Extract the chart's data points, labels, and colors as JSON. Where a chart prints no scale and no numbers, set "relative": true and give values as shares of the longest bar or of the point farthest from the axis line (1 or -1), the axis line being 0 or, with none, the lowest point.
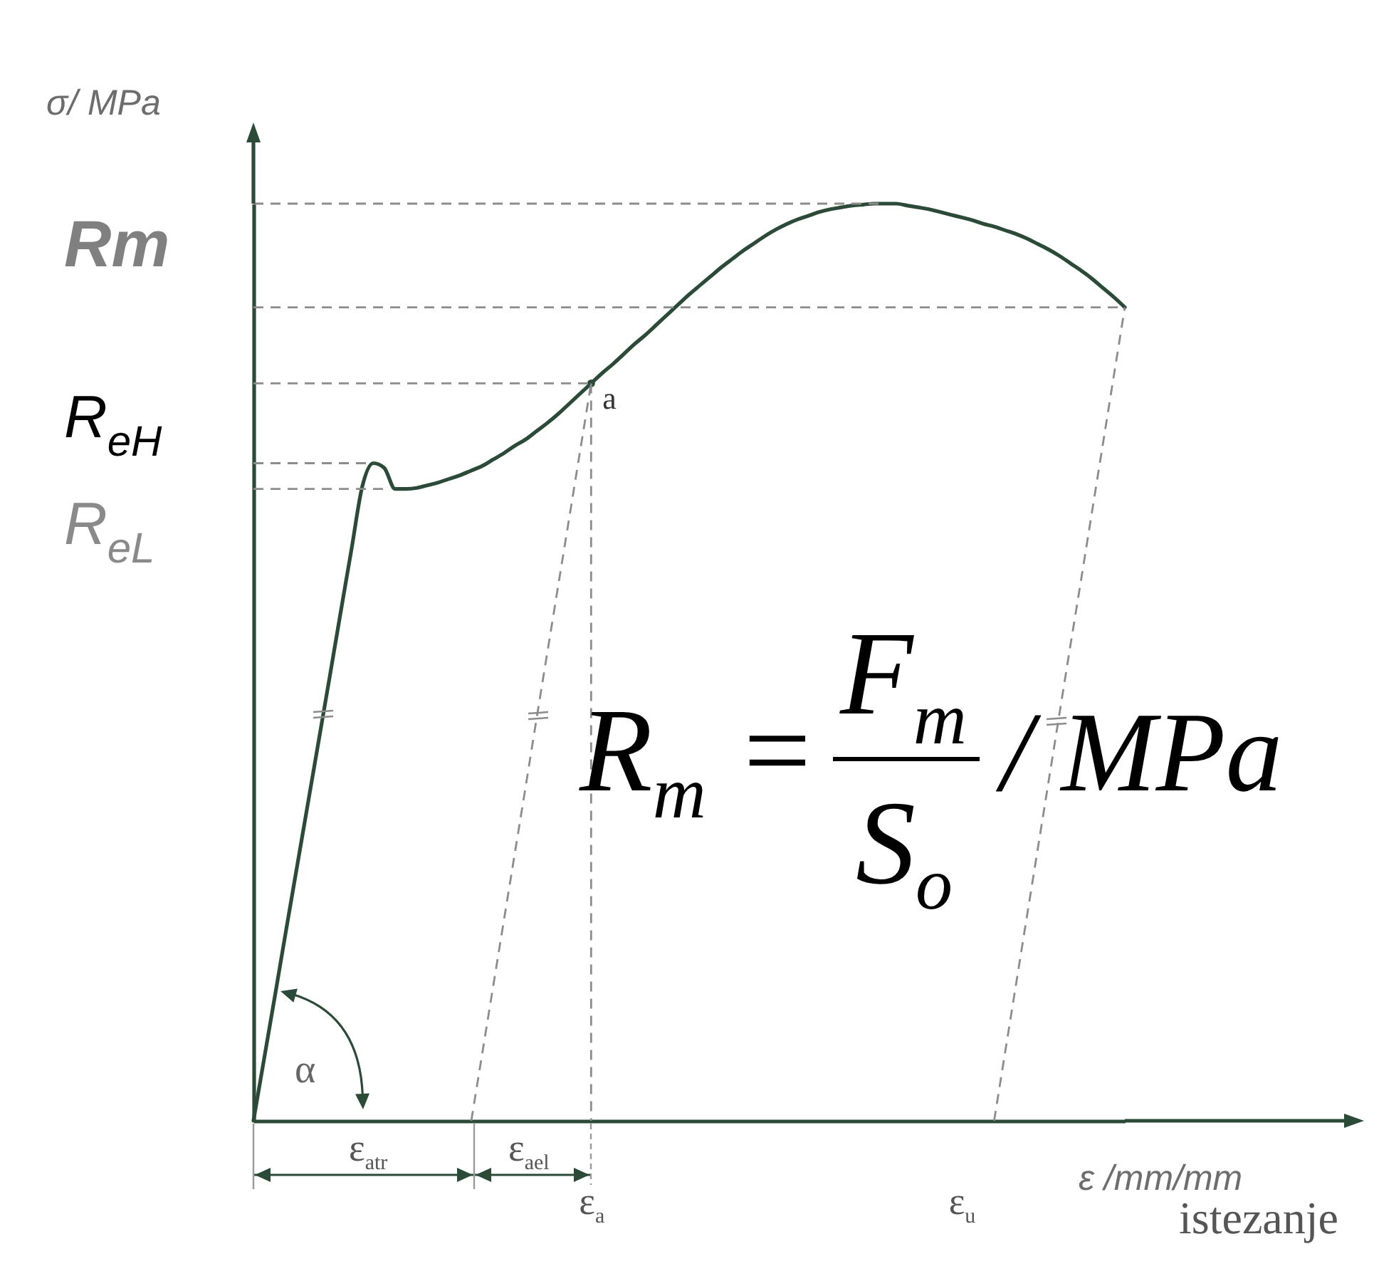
{
  "chart_data": {
    "type": "line",
    "relative": true,
    "ylabel": "σ/ MPa",
    "xlabel": "ε /mm/mm",
    "grid": false,
    "tick_labels": "x",
    "marker": "none",
    "line_style": "solid",
    "categories": [
      null,
      null,
      null,
      null,
      null,
      null,
      null,
      null,
      null,
      null,
      null,
      null,
      null,
      null,
      null,
      null,
      null,
      null,
      null,
      null,
      null,
      null,
      null,
      null,
      null,
      null,
      null,
      null,
      null,
      null,
      null,
      "ε$_{a}$",
      null,
      null,
      null,
      null,
      null,
      null,
      null,
      null,
      null,
      null,
      null,
      null,
      null,
      null,
      null,
      null,
      null,
      null,
      null,
      null,
      null,
      null,
      null,
      null,
      null,
      null,
      null,
      null,
      null,
      null,
      null,
      null,
      null,
      "ε$_{u}$",
      null,
      null,
      null,
      null,
      null,
      null,
      null,
      null,
      null,
      null,
      null,
      null,
      null,
      null,
      null
    ],
    "series": [
      {
        "color": "#2b4a38",
        "values": [
          0,
          0.069,
          0.138,
          0.208,
          0.277,
          0.346,
          0.415,
          0.484,
          0.554,
          0.623,
          0.692,
          0.717,
          0.712,
          0.689,
          0.689,
          0.69,
          0.693,
          0.696,
          0.7,
          0.704,
          0.709,
          0.714,
          0.721,
          0.728,
          0.736,
          0.743,
          0.752,
          0.761,
          0.771,
          0.782,
          0.793,
          0.804,
          0.815,
          0.825,
          0.836,
          0.847,
          0.857,
          0.868,
          0.879,
          0.89,
          0.901,
          0.911,
          0.921,
          0.931,
          0.94,
          0.949,
          0.957,
          0.965,
          0.972,
          0.978,
          0.983,
          0.987,
          0.991,
          0.994,
          0.996,
          0.998,
          0.999,
          1,
          1,
          1,
          0.998,
          0.996,
          0.994,
          0.991,
          0.988,
          0.985,
          0.982,
          0.978,
          0.975,
          0.971,
          0.967,
          0.962,
          0.956,
          0.95,
          0.943,
          0.935,
          0.927,
          0.918,
          0.908,
          0.898,
          0.887
        ]
      },
      {
        "type": "scatter",
        "marker": "circle",
        "color": "#2b4a38",
        "x": [
          "ε$_{a}$"
        ],
        "values": [
          0.804
        ]
      },
      {
        "color": "#8c8c8c",
        "line_style": "dashed",
        "values": [
          1,
          1,
          1,
          1,
          1,
          1,
          1,
          1,
          1,
          1,
          1,
          1,
          1,
          1,
          1,
          1,
          1,
          1,
          1,
          1,
          1,
          1,
          1,
          1,
          1,
          1,
          1,
          1,
          1,
          1,
          1,
          1,
          1,
          1,
          1,
          1,
          1,
          1,
          1,
          1,
          1,
          1,
          1,
          1,
          1,
          1,
          1,
          1,
          1,
          1,
          1,
          1,
          1,
          1,
          1,
          1,
          1,
          1,
          1,
          null,
          null,
          null,
          null,
          null,
          null,
          null,
          null,
          null,
          null,
          null,
          null,
          null,
          null,
          null,
          null,
          null,
          null,
          null,
          null,
          null,
          null
        ]
      },
      {
        "color": "#8c8c8c",
        "line_style": "dashed",
        "values": [
          0.887,
          0.887,
          0.887,
          0.887,
          0.887,
          0.887,
          0.887,
          0.887,
          0.887,
          0.887,
          0.887,
          0.887,
          0.887,
          0.887,
          0.887,
          0.887,
          0.887,
          0.887,
          0.887,
          0.887,
          0.887,
          0.887,
          0.887,
          0.887,
          0.887,
          0.887,
          0.887,
          0.887,
          0.887,
          0.887,
          0.887,
          0.887,
          0.887,
          0.887,
          0.887,
          0.887,
          0.887,
          0.887,
          0.887,
          0.887,
          0.887,
          0.887,
          0.887,
          0.887,
          0.887,
          0.887,
          0.887,
          0.887,
          0.887,
          0.887,
          0.887,
          0.887,
          0.887,
          0.887,
          0.887,
          0.887,
          0.887,
          0.887,
          0.887,
          0.887,
          0.887,
          0.887,
          0.887,
          0.887,
          0.887,
          0.887,
          0.887,
          0.887,
          0.887,
          0.887,
          0.887,
          0.887,
          0.887,
          0.887,
          0.887,
          0.887,
          0.887,
          0.887,
          0.887,
          0.887,
          0.887
        ]
      },
      {
        "color": "#8c8c8c",
        "line_style": "dashed",
        "values": [
          0.804,
          0.804,
          0.804,
          0.804,
          0.804,
          0.804,
          0.804,
          0.804,
          0.804,
          0.804,
          0.804,
          0.804,
          0.804,
          0.804,
          0.804,
          0.804,
          0.804,
          0.804,
          0.804,
          0.804,
          0.804,
          0.804,
          0.804,
          0.804,
          0.804,
          0.804,
          0.804,
          0.804,
          0.804,
          0.804,
          0.804,
          0.804,
          null,
          null,
          null,
          null,
          null,
          null,
          null,
          null,
          null,
          null,
          null,
          null,
          null,
          null,
          null,
          null,
          null,
          null,
          null,
          null,
          null,
          null,
          null,
          null,
          null,
          null,
          null,
          null,
          null,
          null,
          null,
          null,
          null,
          null,
          null,
          null,
          null,
          null,
          null,
          null,
          null,
          null,
          null,
          null,
          null,
          null,
          null,
          null,
          null
        ]
      },
      {
        "color": "#8c8c8c",
        "line_style": "dashed",
        "values": [
          0.717,
          0.717,
          0.717,
          0.717,
          0.717,
          0.717,
          0.717,
          0.717,
          0.717,
          0.717,
          0.717,
          0.717,
          null,
          null,
          null,
          null,
          null,
          null,
          null,
          null,
          null,
          null,
          null,
          null,
          null,
          null,
          null,
          null,
          null,
          null,
          null,
          null,
          null,
          null,
          null,
          null,
          null,
          null,
          null,
          null,
          null,
          null,
          null,
          null,
          null,
          null,
          null,
          null,
          null,
          null,
          null,
          null,
          null,
          null,
          null,
          null,
          null,
          null,
          null,
          null,
          null,
          null,
          null,
          null,
          null,
          null,
          null,
          null,
          null,
          null,
          null,
          null,
          null,
          null,
          null,
          null,
          null,
          null,
          null,
          null,
          null
        ]
      },
      {
        "color": "#8c8c8c",
        "line_style": "dashed",
        "values": [
          0.689,
          0.689,
          0.689,
          0.689,
          0.689,
          0.689,
          0.689,
          0.689,
          0.689,
          0.689,
          0.689,
          0.689,
          0.689,
          null,
          null,
          null,
          null,
          null,
          null,
          null,
          null,
          null,
          null,
          null,
          null,
          null,
          null,
          null,
          null,
          null,
          null,
          null,
          null,
          null,
          null,
          null,
          null,
          null,
          null,
          null,
          null,
          null,
          null,
          null,
          null,
          null,
          null,
          null,
          null,
          null,
          null,
          null,
          null,
          null,
          null,
          null,
          null,
          null,
          null,
          null,
          null,
          null,
          null,
          null,
          null,
          null,
          null,
          null,
          null,
          null,
          null,
          null,
          null,
          null,
          null,
          null,
          null,
          null,
          null,
          null,
          null
        ]
      },
      {
        "color": "#8c8c8c",
        "line_style": "dashed",
        "values": [
          null,
          null,
          null,
          null,
          null,
          null,
          null,
          null,
          null,
          null,
          null,
          null,
          null,
          null,
          null,
          null,
          null,
          null,
          null,
          null,
          0,
          0.073,
          0.146,
          0.219,
          0.292,
          0.365,
          0.439,
          0.512,
          0.585,
          0.658,
          0.731,
          0.804,
          null,
          null,
          null,
          null,
          null,
          null,
          null,
          null,
          null,
          null,
          null,
          null,
          null,
          null,
          null,
          null,
          null,
          null,
          null,
          null,
          null,
          null,
          null,
          null,
          null,
          null,
          null,
          null,
          null,
          null,
          null,
          null,
          null,
          null,
          null,
          null,
          null,
          null,
          null,
          null,
          null,
          null,
          null,
          null,
          null,
          null,
          null,
          null,
          null
        ]
      },
      {
        "color": "#8c8c8c",
        "line_style": "dashed",
        "x": [
          "ε$_{a}$",
          "ε$_{a}$"
        ],
        "values": [
          0.804,
          0
        ]
      },
      {
        "color": "#8c8c8c",
        "line_style": "dashed",
        "values": [
          null,
          null,
          null,
          null,
          null,
          null,
          null,
          null,
          null,
          null,
          null,
          null,
          null,
          null,
          null,
          null,
          null,
          null,
          null,
          null,
          null,
          null,
          null,
          null,
          null,
          null,
          null,
          null,
          null,
          null,
          null,
          null,
          null,
          null,
          null,
          null,
          null,
          null,
          null,
          null,
          null,
          null,
          null,
          null,
          null,
          null,
          null,
          null,
          null,
          null,
          null,
          null,
          null,
          null,
          null,
          null,
          null,
          null,
          null,
          null,
          null,
          null,
          null,
          null,
          null,
          null,
          null,
          null,
          0,
          0.074,
          0.148,
          0.222,
          0.296,
          0.37,
          0.444,
          0.518,
          0.591,
          0.665,
          0.739,
          0.813,
          0.887
        ]
      }
    ],
    "annotations": [
      "Rm",
      "R$_{eH}$",
      "R$_{eL}$",
      {
        "text": "a",
        "x": "ε$_{a}$",
        "y": 0.804
      },
      "α",
      "ε$_{atr}$",
      "ε$_{ael}$",
      "R$_{m}$ =",
      "F$_{m}$",
      "S$_{o}$",
      "/ MPa",
      "istezanje"
    ]
  }
}
